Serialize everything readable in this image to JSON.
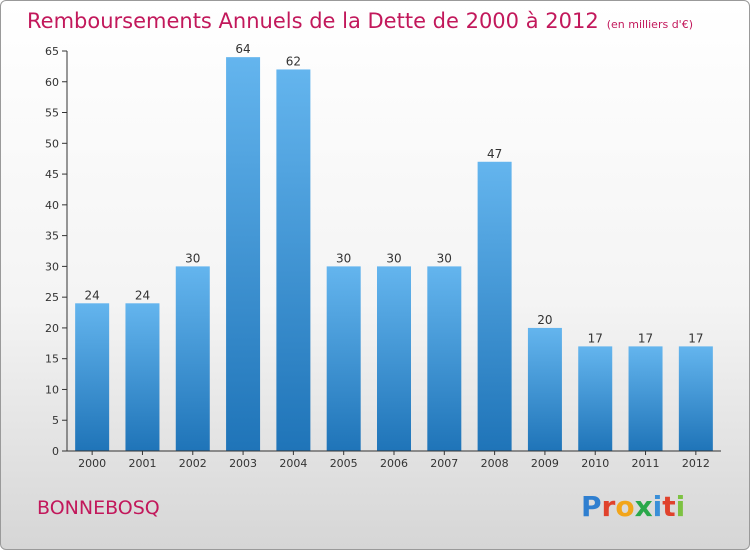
{
  "header": {
    "title": "Remboursements Annuels de la Dette de 2000 à 2012",
    "unit": "(en milliers d'€)"
  },
  "footer": {
    "commune": "BONNEBOSQ",
    "logo_letters": [
      "P",
      "r",
      "o",
      "x",
      "i",
      "t",
      "i"
    ]
  },
  "colors": {
    "bar_top": "#64b5ee",
    "bar_bottom": "#1f74b8",
    "title": "#c2185b",
    "axis": "#333333"
  },
  "chart_data": {
    "type": "bar",
    "title": "Remboursements Annuels de la Dette de 2000 à 2012",
    "xlabel": "",
    "ylabel": "",
    "categories": [
      "2000",
      "2001",
      "2002",
      "2003",
      "2004",
      "2005",
      "2006",
      "2007",
      "2008",
      "2009",
      "2010",
      "2011",
      "2012"
    ],
    "values": [
      24,
      24,
      30,
      64,
      62,
      30,
      30,
      30,
      47,
      20,
      17,
      17,
      17
    ],
    "ylim": [
      0,
      65
    ],
    "yticks": [
      0,
      5,
      10,
      15,
      20,
      25,
      30,
      35,
      40,
      45,
      50,
      55,
      60,
      65
    ],
    "grid": false,
    "data_labels": true
  }
}
